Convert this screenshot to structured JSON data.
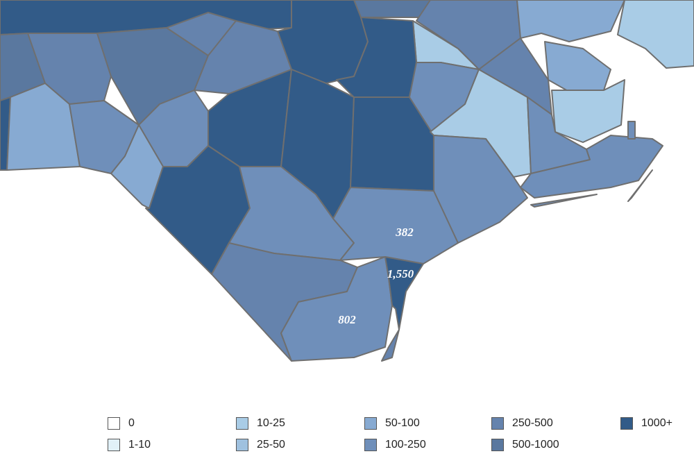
{
  "map": {
    "county_labels": [
      {
        "id": "county-a",
        "text": "382"
      },
      {
        "id": "county-b",
        "text": "1,550"
      },
      {
        "id": "county-c",
        "text": "802"
      }
    ]
  },
  "legend": {
    "items": [
      {
        "label": "0",
        "color": "#ffffff"
      },
      {
        "label": "1-10",
        "color": "#e1f1f8"
      },
      {
        "label": "10-25",
        "color": "#a9cce6"
      },
      {
        "label": "25-50",
        "color": "#9fc1df"
      },
      {
        "label": "50-100",
        "color": "#87aad2"
      },
      {
        "label": "100-250",
        "color": "#6f8fba"
      },
      {
        "label": "250-500",
        "color": "#6583ad"
      },
      {
        "label": "500-1000",
        "color": "#5a789f"
      },
      {
        "label": "1000+",
        "color": "#325b88"
      }
    ]
  }
}
